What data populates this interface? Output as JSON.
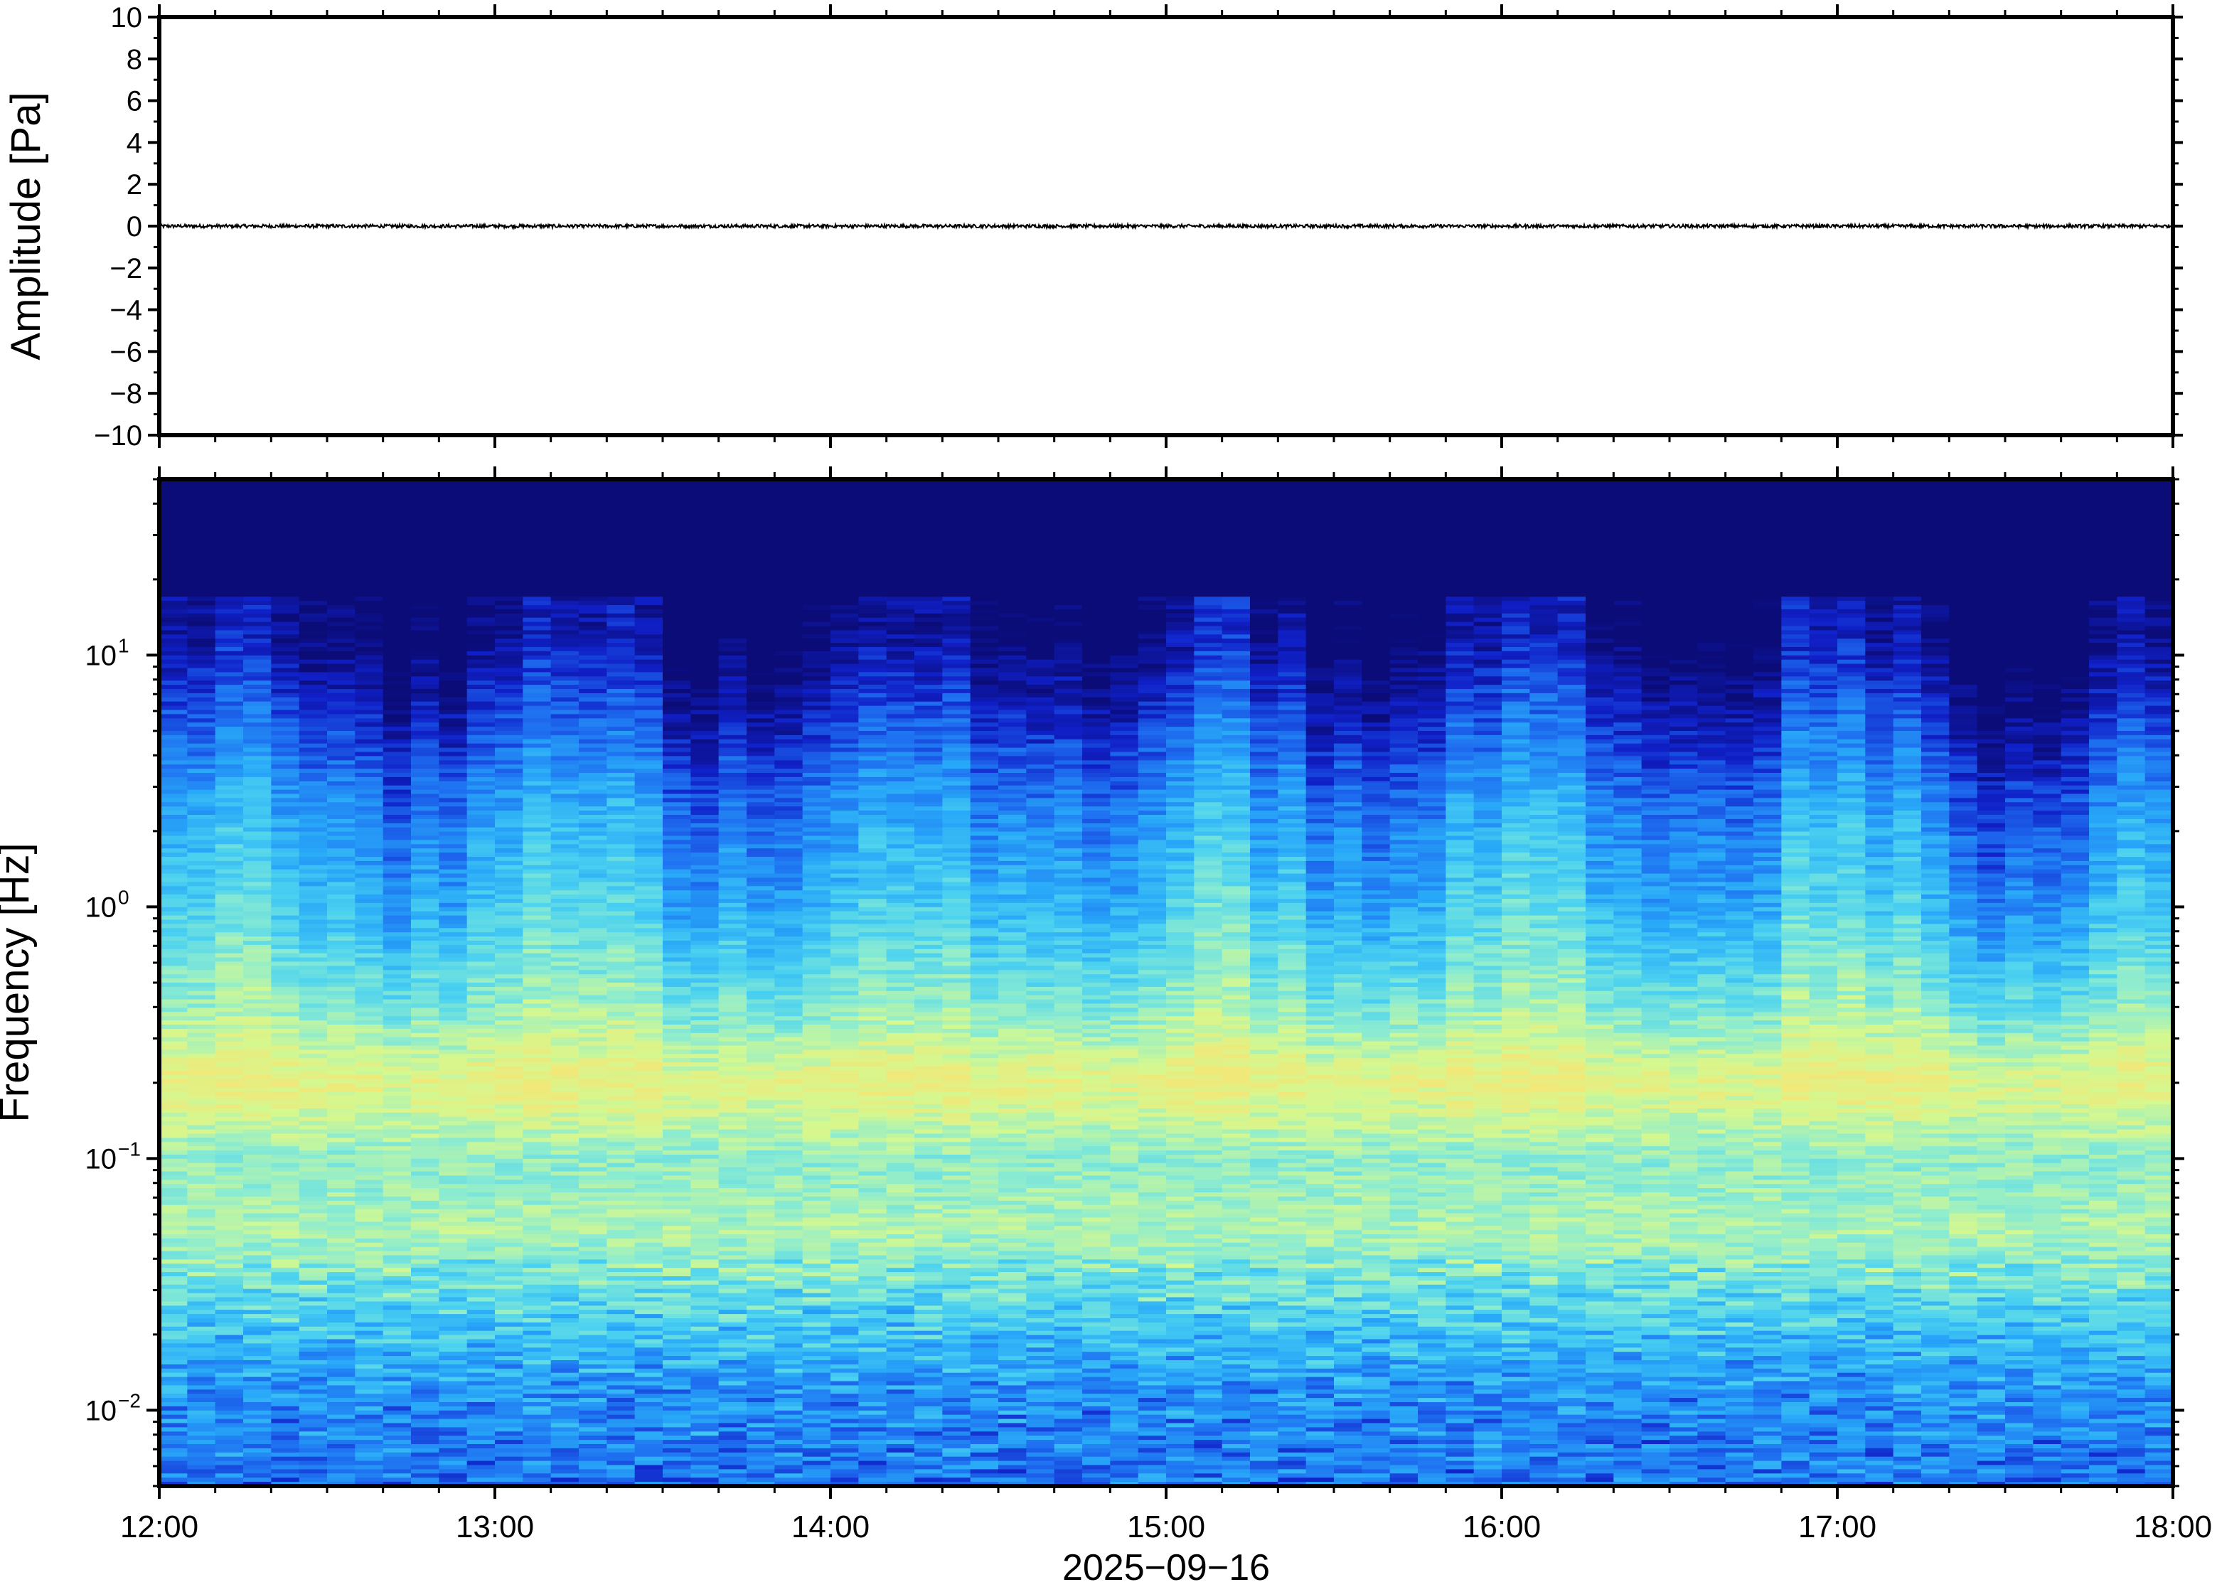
{
  "chart_data": [
    {
      "type": "line",
      "panel": "waveform",
      "ylabel": "Amplitude [Pa]",
      "ylim": [
        -10,
        10
      ],
      "yticks": [
        -10,
        -8,
        -6,
        -4,
        -2,
        0,
        2,
        4,
        6,
        8,
        10
      ],
      "ytick_labels": [
        "−10",
        "−8",
        "−6",
        "−4",
        "−2",
        "0",
        "2",
        "4",
        "6",
        "8",
        "10"
      ],
      "xlim": [
        "2025-09-16T12:00",
        "2025-09-16T18:00"
      ],
      "series_description": "near-zero pressure trace, amplitude below about 0.1 Pa",
      "amplitude": 0.08,
      "color": "#000000"
    },
    {
      "type": "heatmap",
      "panel": "spectrogram",
      "ylabel": "Frequency [Hz]",
      "yscale": "log",
      "ylim": [
        0.005,
        50
      ],
      "yticks": [
        0.01,
        0.1,
        1,
        10
      ],
      "ytick_labels": [
        {
          "base": "10",
          "exp": "−2"
        },
        {
          "base": "10",
          "exp": "−1"
        },
        {
          "base": "10",
          "exp": "0"
        },
        {
          "base": "10",
          "exp": "1"
        }
      ],
      "xlabel": "2025−09−16",
      "xlim": [
        "2025-09-16T12:00",
        "2025-09-16T18:00"
      ],
      "xticks": [
        "12:00",
        "13:00",
        "14:00",
        "15:00",
        "16:00",
        "17:00",
        "18:00"
      ],
      "colormap": [
        "#0b0c78",
        "#1020c8",
        "#1e6ef0",
        "#28a8f8",
        "#4cd2f0",
        "#8cecd0",
        "#d4f890",
        "#f0e878"
      ],
      "power_profile": [
        {
          "freq": 0.005,
          "level": 0.3
        },
        {
          "freq": 0.012,
          "level": 0.38
        },
        {
          "freq": 0.025,
          "level": 0.58
        },
        {
          "freq": 0.05,
          "level": 0.78
        },
        {
          "freq": 0.1,
          "level": 0.72
        },
        {
          "freq": 0.2,
          "level": 0.95
        },
        {
          "freq": 0.4,
          "level": 0.72
        },
        {
          "freq": 1,
          "level": 0.52
        },
        {
          "freq": 2.5,
          "level": 0.38
        },
        {
          "freq": 6,
          "level": 0.18
        },
        {
          "freq": 12,
          "level": 0.02
        },
        {
          "freq": 50,
          "level": 0.0
        }
      ]
    }
  ]
}
